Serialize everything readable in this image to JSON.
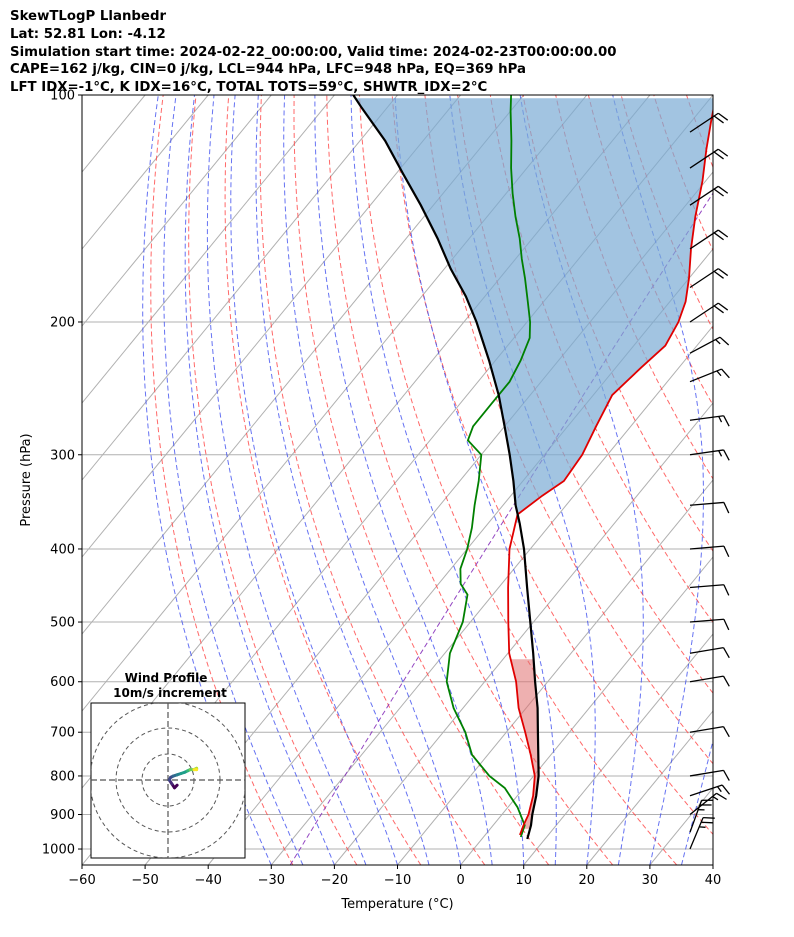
{
  "header": {
    "line1": "SkewTLogP Llanbedr",
    "line2": "Lat: 52.81   Lon: -4.12",
    "line3": "Simulation start time: 2024-02-22_00:00:00, Valid time: 2024-02-23T00:00:00.00",
    "line4": "CAPE=162 j/kg, CIN=0 j/kg, LCL=944 hPa, LFC=948 hPa, EQ=369 hPa",
    "line5": "LFT IDX=-1°C, K IDX=16°C, TOTAL TOTS=59°C, SHWTR_IDX=2°C"
  },
  "chart_data": {
    "type": "line",
    "title": "SkewTLogP Llanbedr",
    "xlabel": "Temperature (°C)",
    "ylabel": "Pressure (hPa)",
    "xlim": [
      -60,
      40
    ],
    "ylim": [
      1050,
      100
    ],
    "y_scale": "log",
    "x_ticks": [
      "−60",
      "−50",
      "−40",
      "−30",
      "−20",
      "−10",
      "0",
      "10",
      "20",
      "30",
      "40"
    ],
    "x_tick_values": [
      -60,
      -50,
      -40,
      -30,
      -20,
      -10,
      0,
      10,
      20,
      30,
      40
    ],
    "y_ticks": [
      "1000",
      "900",
      "800",
      "700",
      "600",
      "500",
      "400",
      "300",
      "200",
      "100"
    ],
    "y_tick_values": [
      1000,
      900,
      800,
      700,
      600,
      500,
      400,
      300,
      200,
      100
    ],
    "grid": true,
    "series": [
      {
        "role": "temperature",
        "color": "#e00000",
        "points": [
          [
            5.5,
            958
          ],
          [
            4.8,
            930
          ],
          [
            4.2,
            900
          ],
          [
            2.5,
            850
          ],
          [
            0.2,
            800
          ],
          [
            -3.2,
            750
          ],
          [
            -7.0,
            700
          ],
          [
            -11.2,
            650
          ],
          [
            -15.0,
            600
          ],
          [
            -19.8,
            550
          ],
          [
            -24.0,
            500
          ],
          [
            -28.5,
            450
          ],
          [
            -33.3,
            400
          ],
          [
            -36.5,
            360
          ],
          [
            -35.0,
            340
          ],
          [
            -33.5,
            325
          ],
          [
            -34.0,
            300
          ],
          [
            -35.5,
            275
          ],
          [
            -37.0,
            250
          ],
          [
            -36.0,
            230
          ],
          [
            -35.0,
            215
          ],
          [
            -36.0,
            200
          ],
          [
            -37.5,
            188
          ],
          [
            -40.0,
            175
          ],
          [
            -43.5,
            160
          ],
          [
            -47.0,
            145
          ],
          [
            -50.5,
            130
          ],
          [
            -54.0,
            118
          ],
          [
            -57.0,
            108
          ],
          [
            -59.5,
            100
          ]
        ]
      },
      {
        "role": "dewpoint",
        "color": "#008000",
        "points": [
          [
            5.9,
            964
          ],
          [
            5.0,
            930
          ],
          [
            1.5,
            880
          ],
          [
            -3.0,
            830
          ],
          [
            -7.0,
            800
          ],
          [
            -12.5,
            750
          ],
          [
            -16.5,
            700
          ],
          [
            -21.5,
            650
          ],
          [
            -26.0,
            600
          ],
          [
            -29.2,
            550
          ],
          [
            -31.2,
            500
          ],
          [
            -34.0,
            460
          ],
          [
            -36.5,
            445
          ],
          [
            -38.5,
            425
          ],
          [
            -40.0,
            400
          ],
          [
            -42.0,
            375
          ],
          [
            -44.5,
            350
          ],
          [
            -47.0,
            325
          ],
          [
            -50.0,
            300
          ],
          [
            -54.0,
            287
          ],
          [
            -55.0,
            275
          ],
          [
            -55.0,
            257
          ],
          [
            -55.0,
            240
          ],
          [
            -56.0,
            225
          ],
          [
            -57.5,
            210
          ],
          [
            -59.5,
            200
          ],
          [
            -62.5,
            188
          ],
          [
            -66.0,
            175
          ],
          [
            -69.0,
            165
          ],
          [
            -72.0,
            155
          ],
          [
            -75.5,
            145
          ],
          [
            -79.0,
            135
          ],
          [
            -82.5,
            125
          ],
          [
            -86.0,
            115
          ],
          [
            -90.0,
            105
          ],
          [
            -92.0,
            100
          ]
        ]
      },
      {
        "role": "parcel",
        "color": "#000000",
        "points": [
          [
            7.2,
            970
          ],
          [
            6.0,
            930
          ],
          [
            4.8,
            900
          ],
          [
            3.0,
            850
          ],
          [
            0.8,
            800
          ],
          [
            -2.0,
            750
          ],
          [
            -5.0,
            700
          ],
          [
            -8.2,
            650
          ],
          [
            -12.0,
            600
          ],
          [
            -16.0,
            550
          ],
          [
            -20.5,
            500
          ],
          [
            -25.5,
            450
          ],
          [
            -31.0,
            400
          ],
          [
            -35.0,
            370
          ],
          [
            -38.0,
            350
          ],
          [
            -41.5,
            325
          ],
          [
            -45.5,
            300
          ],
          [
            -50.0,
            275
          ],
          [
            -55.0,
            250
          ],
          [
            -61.0,
            225
          ],
          [
            -68.0,
            200
          ],
          [
            -73.0,
            185
          ],
          [
            -79.0,
            170
          ],
          [
            -85.0,
            155
          ],
          [
            -92.0,
            140
          ],
          [
            -99.0,
            127
          ],
          [
            -106.0,
            115
          ],
          [
            -114.0,
            104
          ],
          [
            -117.0,
            100
          ]
        ]
      }
    ],
    "wind_barbs": [
      {
        "p": 1000,
        "u": -10,
        "v": -24
      },
      {
        "p": 950,
        "u": -8,
        "v": -22
      },
      {
        "p": 900,
        "u": -10,
        "v": -8
      },
      {
        "p": 850,
        "u": -12,
        "v": -4
      },
      {
        "p": 800,
        "u": -12,
        "v": -2
      },
      {
        "p": 700,
        "u": -12,
        "v": -2
      },
      {
        "p": 600,
        "u": -12,
        "v": -2
      },
      {
        "p": 550,
        "u": -12,
        "v": -2
      },
      {
        "p": 500,
        "u": -12,
        "v": -1
      },
      {
        "p": 450,
        "u": -12,
        "v": -1
      },
      {
        "p": 400,
        "u": -12,
        "v": -1
      },
      {
        "p": 350,
        "u": -12,
        "v": -1
      },
      {
        "p": 300,
        "u": -14,
        "v": -2
      },
      {
        "p": 270,
        "u": -15,
        "v": -2
      },
      {
        "p": 240,
        "u": -15,
        "v": -6
      },
      {
        "p": 220,
        "u": -15,
        "v": -8
      },
      {
        "p": 200,
        "u": -15,
        "v": -10
      },
      {
        "p": 180,
        "u": -15,
        "v": -10
      },
      {
        "p": 160,
        "u": -15,
        "v": -10
      },
      {
        "p": 140,
        "u": -15,
        "v": -10
      },
      {
        "p": 125,
        "u": -15,
        "v": -10
      },
      {
        "p": 112,
        "u": -15,
        "v": -10
      }
    ],
    "hodograph": {
      "title": "Wind Profile",
      "subtitle": "10m/s increment",
      "ring_step": 10,
      "points": [
        [
          7,
          -4
        ],
        [
          5,
          -6
        ],
        [
          3,
          -3
        ],
        [
          1,
          0
        ],
        [
          2,
          2
        ],
        [
          4,
          3
        ],
        [
          7,
          4
        ],
        [
          10,
          5
        ],
        [
          13,
          6
        ],
        [
          15,
          7
        ],
        [
          17,
          8
        ],
        [
          20,
          8
        ],
        [
          22,
          9
        ],
        [
          22,
          8
        ],
        [
          20,
          8
        ]
      ]
    }
  }
}
